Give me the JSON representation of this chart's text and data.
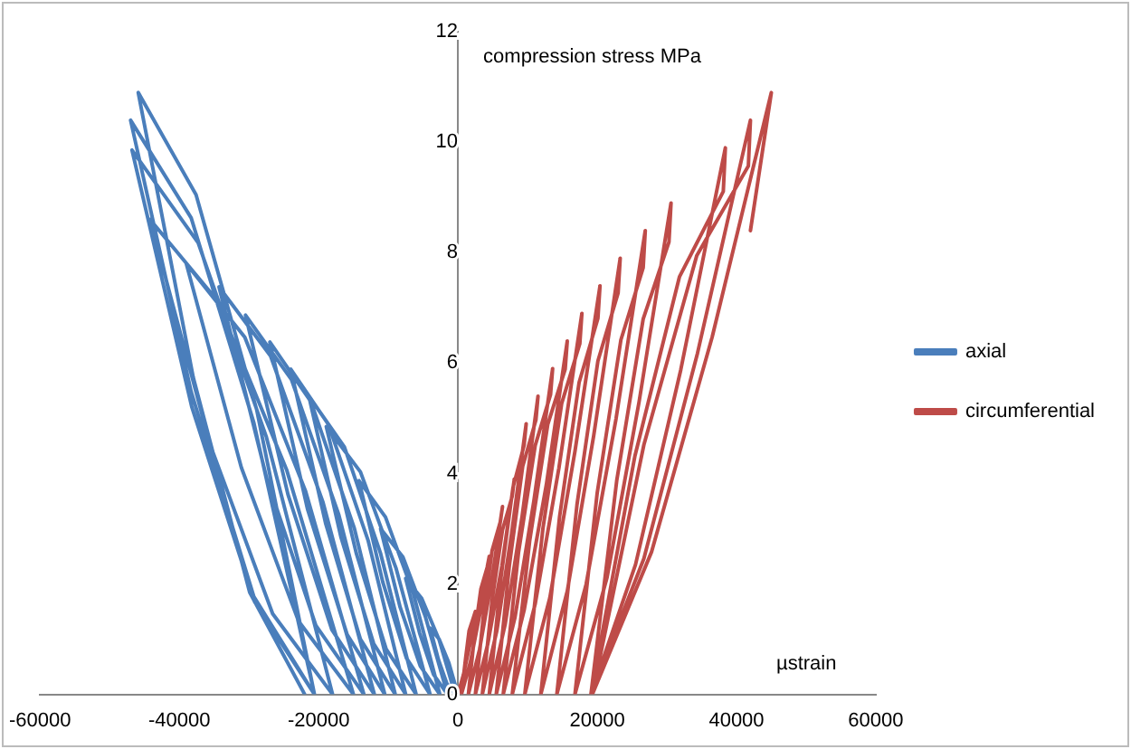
{
  "chart_data": {
    "type": "line",
    "xlabel": "µstrain",
    "ylabel": "compression stress MPa",
    "xlim": [
      -60000,
      60000
    ],
    "xticks": [
      -60000,
      -40000,
      -20000,
      0,
      20000,
      40000,
      60000
    ],
    "ylim": [
      0,
      12
    ],
    "yticks": [
      0,
      2,
      4,
      6,
      8,
      10,
      12
    ],
    "grid": false,
    "legend": "right",
    "marker": "none",
    "line_style": "solid",
    "series": [
      {
        "name": "axial",
        "color": "#4a7ebb",
        "x": [
          0,
          -1300,
          -2700,
          -4000,
          -2800,
          -1600,
          -400,
          -2700,
          -5200,
          -7500,
          -5500,
          -3500,
          -1500,
          -4700,
          -7900,
          -11100,
          -8300,
          -5400,
          -2600,
          -6400,
          -10400,
          -14200,
          -10800,
          -7400,
          -4000,
          -8900,
          -14000,
          -18900,
          -14600,
          -10300,
          -6000,
          -11100,
          -16300,
          -21400,
          -16800,
          -12100,
          -7500,
          -12900,
          -18600,
          -24000,
          -19000,
          -14000,
          -9000,
          -14900,
          -21100,
          -27000,
          -21600,
          -15900,
          -10500,
          -17100,
          -23900,
          -30500,
          -24400,
          -18100,
          -12000,
          -19400,
          -26900,
          -34300,
          -27400,
          -20400,
          -13500,
          -21900,
          -30600,
          -39000,
          -31100,
          -22900,
          -15000,
          -24600,
          -34600,
          -44200,
          -35600,
          -26600,
          -18000,
          -27500,
          -37300,
          -46800,
          -38200,
          -29200,
          -20600,
          -29300,
          -38300,
          -47000,
          -38300,
          -29300,
          -20600,
          -28900,
          -37600,
          -45900,
          -38000,
          -29900,
          -22000
        ],
        "values": [
          0,
          0.57,
          1.0,
          1.2,
          0.63,
          0.2,
          0,
          0.99,
          1.74,
          2.1,
          1.11,
          0.36,
          0,
          1.42,
          2.49,
          3.0,
          1.58,
          0.51,
          0,
          1.83,
          3.21,
          3.87,
          2.04,
          0.66,
          0,
          2.29,
          4.03,
          4.85,
          2.56,
          0.82,
          0,
          2.55,
          4.48,
          5.4,
          2.85,
          0.92,
          0,
          2.79,
          4.89,
          5.89,
          3.1,
          1.0,
          0,
          3.02,
          5.3,
          6.38,
          3.36,
          1.08,
          0,
          3.25,
          5.7,
          6.87,
          3.62,
          1.17,
          0,
          3.49,
          6.13,
          7.38,
          3.89,
          1.25,
          0,
          3.69,
          6.47,
          7.8,
          4.11,
          1.33,
          0,
          4.07,
          7.14,
          8.6,
          4.53,
          1.46,
          0,
          4.66,
          8.18,
          9.86,
          5.2,
          1.68,
          0,
          4.92,
          8.63,
          10.4,
          5.48,
          1.77,
          0,
          5.16,
          9.05,
          10.9,
          5.74,
          1.85,
          0
        ]
      },
      {
        "name": "circumferential",
        "color": "#be4b48",
        "x": [
          0,
          800,
          1700,
          2500,
          2200,
          1600,
          1100,
          500,
          1800,
          3200,
          4500,
          4200,
          3300,
          2400,
          1500,
          3100,
          4800,
          6400,
          6100,
          4900,
          3700,
          2500,
          4300,
          6300,
          8100,
          7800,
          6400,
          4900,
          3500,
          5600,
          7700,
          9800,
          9500,
          7900,
          6200,
          4500,
          6800,
          9200,
          11500,
          11200,
          9300,
          7400,
          5500,
          8200,
          10900,
          13600,
          13300,
          11100,
          8700,
          6500,
          9500,
          12700,
          15700,
          15400,
          12900,
          10300,
          7800,
          11100,
          14500,
          17800,
          17500,
          14900,
          12200,
          9600,
          13200,
          16800,
          20400,
          20100,
          17400,
          14600,
          11900,
          15700,
          19500,
          23300,
          23000,
          20100,
          17100,
          14200,
          18400,
          22700,
          26900,
          26600,
          23400,
          20000,
          16800,
          21400,
          26000,
          30600,
          30300,
          26600,
          22800,
          19100,
          25500,
          32000,
          38400,
          38100,
          31800,
          25400,
          19100,
          26700,
          34400,
          42000,
          41700,
          34300,
          26700,
          19300,
          27800,
          36500,
          45000,
          42000
        ],
        "values": [
          0,
          0.36,
          0.89,
          1.5,
          1.38,
          1.15,
          0.65,
          0,
          0.59,
          1.49,
          2.5,
          2.3,
          1.91,
          1.09,
          0,
          0.81,
          2.02,
          3.4,
          3.13,
          2.6,
          1.48,
          0,
          0.92,
          2.32,
          3.9,
          3.59,
          2.98,
          1.7,
          0,
          1.16,
          2.91,
          4.9,
          4.51,
          3.74,
          2.13,
          0,
          1.28,
          3.21,
          5.4,
          4.97,
          4.13,
          2.35,
          0,
          1.4,
          3.5,
          5.9,
          5.43,
          4.51,
          2.57,
          0,
          1.52,
          3.8,
          6.4,
          5.89,
          4.89,
          2.78,
          0,
          1.64,
          4.1,
          6.9,
          6.35,
          5.27,
          3.0,
          0,
          1.75,
          4.4,
          7.4,
          6.81,
          5.65,
          3.22,
          0,
          1.87,
          4.69,
          7.9,
          7.27,
          6.04,
          3.44,
          0,
          1.99,
          4.99,
          8.4,
          7.73,
          6.42,
          3.65,
          0,
          2.11,
          5.29,
          8.9,
          8.19,
          6.8,
          3.87,
          0,
          2.35,
          5.88,
          9.9,
          9.11,
          7.56,
          4.31,
          0,
          2.46,
          6.18,
          10.4,
          9.57,
          7.95,
          4.52,
          0,
          2.58,
          6.47,
          10.9,
          8.4
        ]
      }
    ]
  }
}
